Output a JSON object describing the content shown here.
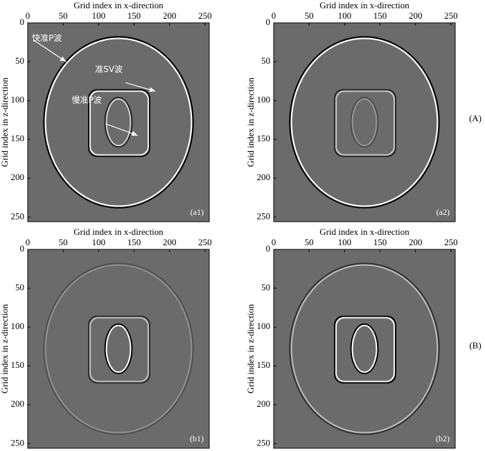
{
  "chart_data": [
    {
      "type": "image",
      "panel_label": "(a1)",
      "xlabel": "Grid index in x-direction",
      "ylabel": "Grid index in z-direction",
      "xlim": [
        0,
        256
      ],
      "ylim": [
        256,
        0
      ],
      "xticks": [
        0,
        50,
        100,
        150,
        200,
        250
      ],
      "yticks": [
        0,
        50,
        100,
        150,
        200,
        250
      ],
      "annotations": [
        "快准P波",
        "准SV波",
        "慢准P波"
      ]
    },
    {
      "type": "image",
      "panel_label": "(a2)",
      "xlabel": "Grid index in x-direction",
      "ylabel": "Grid index in z-direction",
      "xlim": [
        0,
        256
      ],
      "ylim": [
        256,
        0
      ],
      "xticks": [
        0,
        50,
        100,
        150,
        200,
        250
      ],
      "yticks": [
        0,
        50,
        100,
        150,
        200,
        250
      ]
    },
    {
      "type": "image",
      "panel_label": "(b1)",
      "xlabel": "Grid index in x-direction",
      "ylabel": "Grid index in z-direction",
      "xlim": [
        0,
        256
      ],
      "ylim": [
        256,
        0
      ],
      "xticks": [
        0,
        50,
        100,
        150,
        200,
        250
      ],
      "yticks": [
        0,
        50,
        100,
        150,
        200,
        250
      ]
    },
    {
      "type": "image",
      "panel_label": "(b2)",
      "xlabel": "Grid index in x-direction",
      "ylabel": "Grid index in z-direction",
      "xlim": [
        0,
        256
      ],
      "ylim": [
        256,
        0
      ],
      "xticks": [
        0,
        50,
        100,
        150,
        200,
        250
      ],
      "yticks": [
        0,
        50,
        100,
        150,
        200,
        250
      ]
    }
  ],
  "row_labels": [
    "(A)",
    "(B)"
  ]
}
